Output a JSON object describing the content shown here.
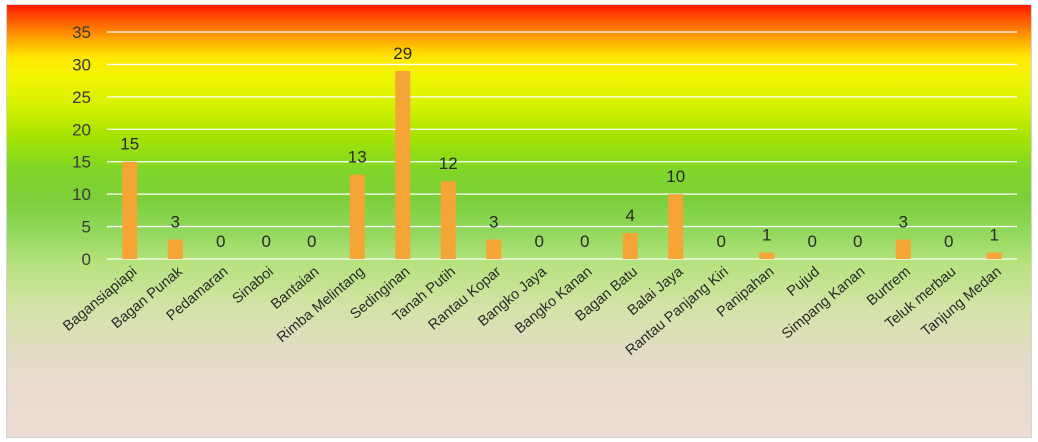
{
  "chart_data": {
    "type": "bar",
    "title": "",
    "xlabel": "",
    "ylabel": "",
    "categories": [
      "Bagansiapiapi",
      "Bagan Punak",
      "Pedamaran",
      "Sinaboi",
      "Bantaian",
      "Rimba Melintang",
      "Sedinginan",
      "Tanah Putih",
      "Rantau Kopar",
      "Bangko Jaya",
      "Bangko Kanan",
      "Bagan Batu",
      "Balai Jaya",
      "Rantau Panjang Kiri",
      "Panipahan",
      "Pujud",
      "Simpang Kanan",
      "Burtrem",
      "Teluk merbau",
      "Tanjung Medan"
    ],
    "values": [
      15,
      3,
      0,
      0,
      0,
      13,
      29,
      12,
      3,
      0,
      0,
      4,
      10,
      0,
      1,
      0,
      0,
      3,
      0,
      1
    ],
    "ylim": [
      0,
      35
    ],
    "yticks": [
      0,
      5,
      10,
      15,
      20,
      25,
      30,
      35
    ],
    "grid": true,
    "legend": "none",
    "bar_color": "#f5a535",
    "data_labels": true
  }
}
